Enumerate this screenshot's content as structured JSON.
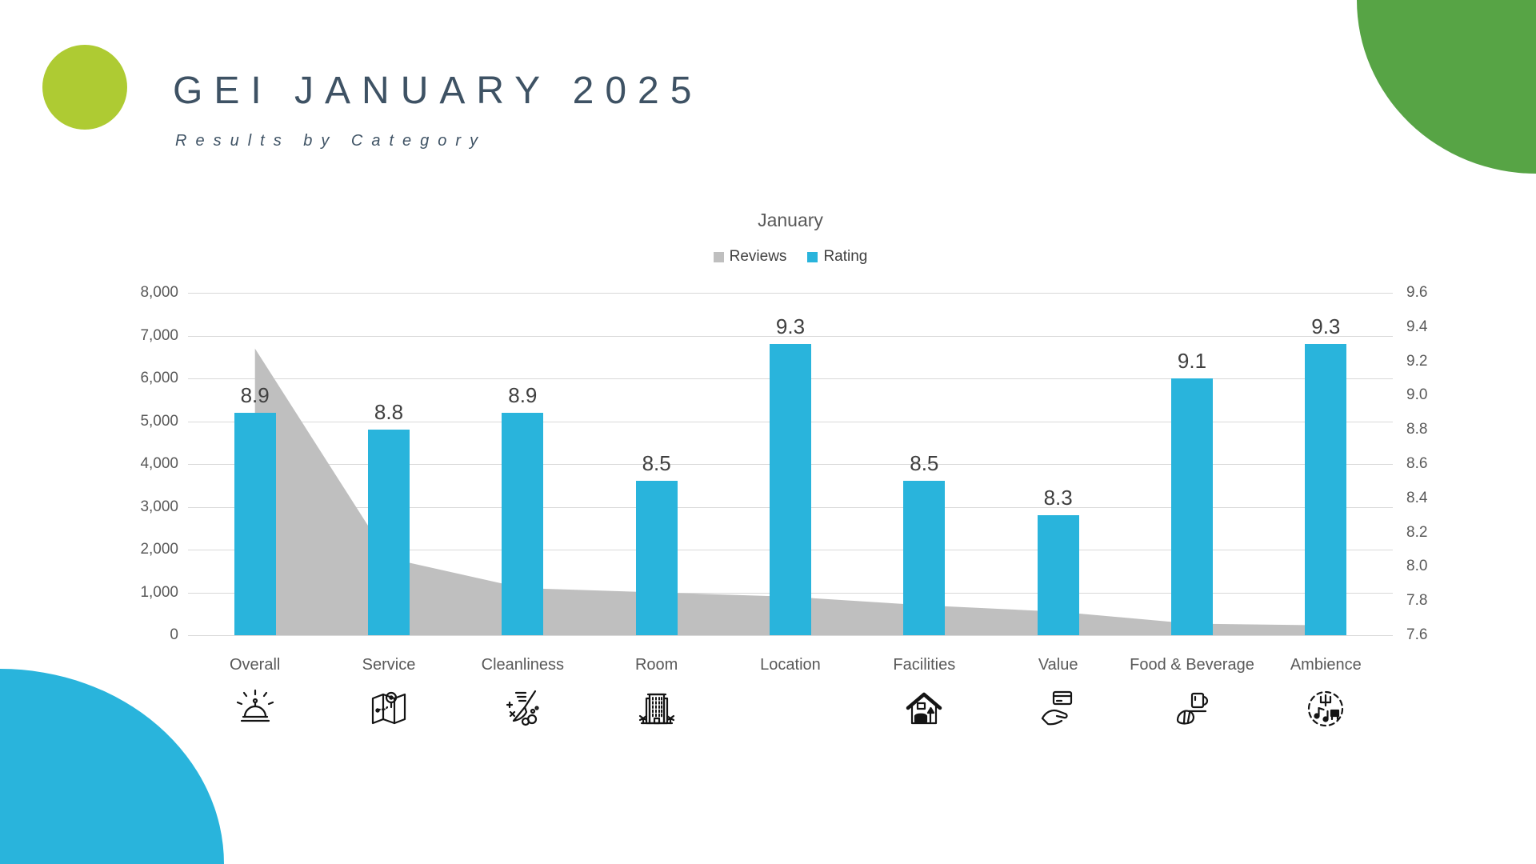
{
  "header": {
    "title": "GEI JANUARY 2025",
    "subtitle": "Results by Category"
  },
  "chart_data": {
    "type": "combo",
    "title": "January",
    "categories": [
      "Overall",
      "Service",
      "Cleanliness",
      "Room",
      "Location",
      "Facilities",
      "Value",
      "Food & Beverage",
      "Ambience"
    ],
    "series": [
      {
        "name": "Reviews",
        "type": "area",
        "axis": "left",
        "values": [
          6700,
          1800,
          1100,
          1000,
          900,
          700,
          550,
          270,
          230
        ]
      },
      {
        "name": "Rating",
        "type": "bar",
        "axis": "right",
        "values": [
          8.9,
          8.8,
          8.9,
          8.5,
          9.3,
          8.5,
          8.3,
          9.1,
          9.3
        ],
        "labels": [
          "8.9",
          "8.8",
          "8.9",
          "8.5",
          "9.3",
          "8.5",
          "8.3",
          "9.1",
          "9.3"
        ]
      }
    ],
    "legend": [
      "Reviews",
      "Rating"
    ],
    "legend_position": "top-center",
    "grid": "horizontal",
    "left_axis": {
      "lim": [
        0,
        8000
      ],
      "ticks": [
        "8,000",
        "7,000",
        "6,000",
        "5,000",
        "4,000",
        "3,000",
        "2,000",
        "1,000",
        "0"
      ]
    },
    "right_axis": {
      "lim": [
        7.6,
        9.6
      ],
      "ticks": [
        "9.6",
        "9.4",
        "9.2",
        "9.0",
        "8.8",
        "8.6",
        "8.4",
        "8.2",
        "8.0",
        "7.8",
        "7.6"
      ]
    }
  },
  "category_icons": [
    {
      "category": "Overall",
      "icon": "service-bell-icon"
    },
    {
      "category": "Service",
      "icon": "map-location-icon"
    },
    {
      "category": "Cleanliness",
      "icon": "broom-icon"
    },
    {
      "category": "Room",
      "icon": "hotel-building-icon"
    },
    {
      "category": "Location",
      "icon": null
    },
    {
      "category": "Facilities",
      "icon": "home-interior-icon"
    },
    {
      "category": "Value",
      "icon": "hand-credit-card-icon"
    },
    {
      "category": "Food & Beverage",
      "icon": "croissant-cup-icon"
    },
    {
      "category": "Ambience",
      "icon": "ambience-music-icon"
    }
  ],
  "colors": {
    "rating_bar": "#29b4dc",
    "reviews_area": "#bfbfbf",
    "lime_circle": "#aecb33",
    "green_corner": "#57a445",
    "blue_corner": "#29b4dc",
    "title_text": "#3e5264",
    "axis_text": "#595959",
    "data_label_text": "#3f3f3f",
    "gridline": "#d9d9d9"
  }
}
